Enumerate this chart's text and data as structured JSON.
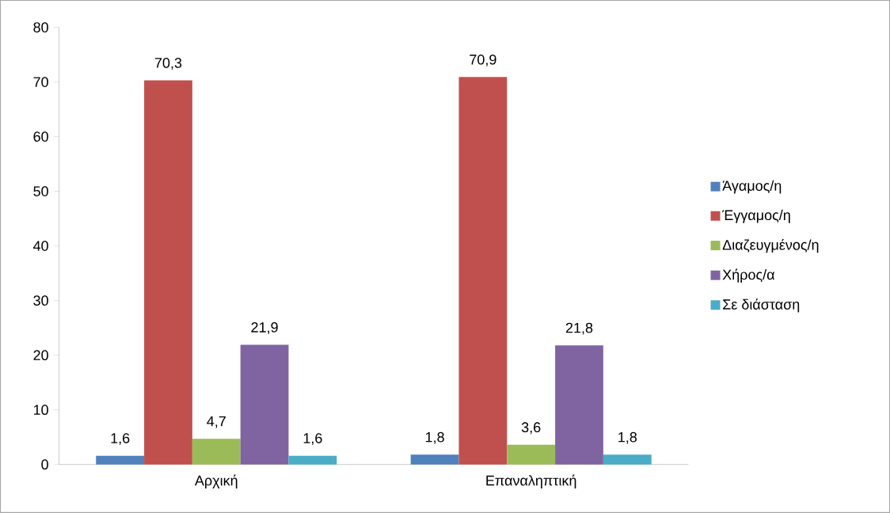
{
  "chart_data": {
    "type": "bar",
    "categories": [
      "Αρχική",
      "Επαναληπτική"
    ],
    "series": [
      {
        "name": "Άγαμος/η",
        "color": "#4f81bd",
        "values": [
          1.6,
          1.8
        ],
        "value_labels": [
          "1,6",
          "1,8"
        ]
      },
      {
        "name": "Έγγαμος/η",
        "color": "#c0504d",
        "values": [
          70.3,
          70.9
        ],
        "value_labels": [
          "70,3",
          "70,9"
        ]
      },
      {
        "name": "Διαζευγμένος/η",
        "color": "#9bbb59",
        "values": [
          4.7,
          3.6
        ],
        "value_labels": [
          "4,7",
          "3,6"
        ]
      },
      {
        "name": "Χήρος/α",
        "color": "#8064a2",
        "values": [
          21.9,
          21.8
        ],
        "value_labels": [
          "21,9",
          "21,8"
        ]
      },
      {
        "name": "Σε διάσταση",
        "color": "#4bacc6",
        "values": [
          1.6,
          1.8
        ],
        "value_labels": [
          "1,6",
          "1,8"
        ]
      }
    ],
    "ylim": [
      0,
      80
    ],
    "yticks": [
      0,
      10,
      20,
      30,
      40,
      50,
      60,
      70,
      80
    ],
    "grid": false,
    "legend": "right"
  }
}
